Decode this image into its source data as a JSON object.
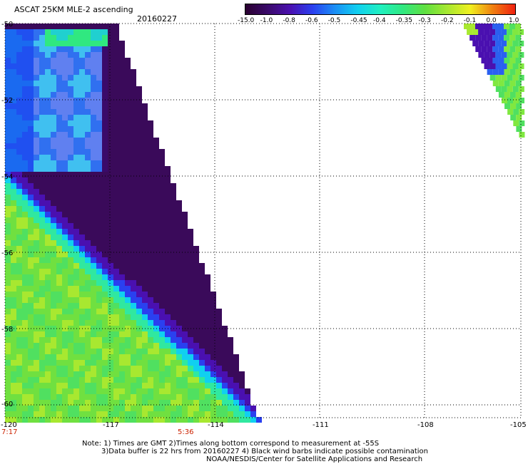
{
  "header": {
    "product": "ASCAT 25KM MLE-2 ascending",
    "date": "20160227"
  },
  "colorbar": {
    "labels": [
      "-15.0",
      "-1.0",
      "-0.8",
      "-0.6",
      "-0.5",
      "-0.45",
      "-0.4",
      "-0.35",
      "-0.3",
      "-0.2",
      "-0.1",
      "0.0",
      "1.0"
    ],
    "colors": [
      "#2a0030",
      "#3a0a6a",
      "#4a10b0",
      "#2a40f0",
      "#1a90f5",
      "#10d0f0",
      "#20f0c0",
      "#30e880",
      "#60e040",
      "#a8e830",
      "#f0f020",
      "#f08010",
      "#f02010"
    ]
  },
  "axes": {
    "lat_labels": [
      "-50",
      "-52",
      "-54",
      "-56",
      "-58",
      "-60"
    ],
    "lon_labels": [
      "-120",
      "-117",
      "-114",
      "-111",
      "-108",
      "-105"
    ],
    "lon_range": [
      -120,
      -105
    ],
    "lat_range": [
      -50,
      -60
    ]
  },
  "time_labels": {
    "left": "7:17",
    "mid": "5:36"
  },
  "notes": {
    "line1": "Note: 1) Times are GMT 2)Times along bottom correspond to measurement at -55S",
    "line2": "3)Data buffer is 22 hrs from 20160227 4) Black wind barbs indicate possible contamination",
    "line3": "NOAA/NESDIS/Center for Satellite Applications and Research"
  }
}
